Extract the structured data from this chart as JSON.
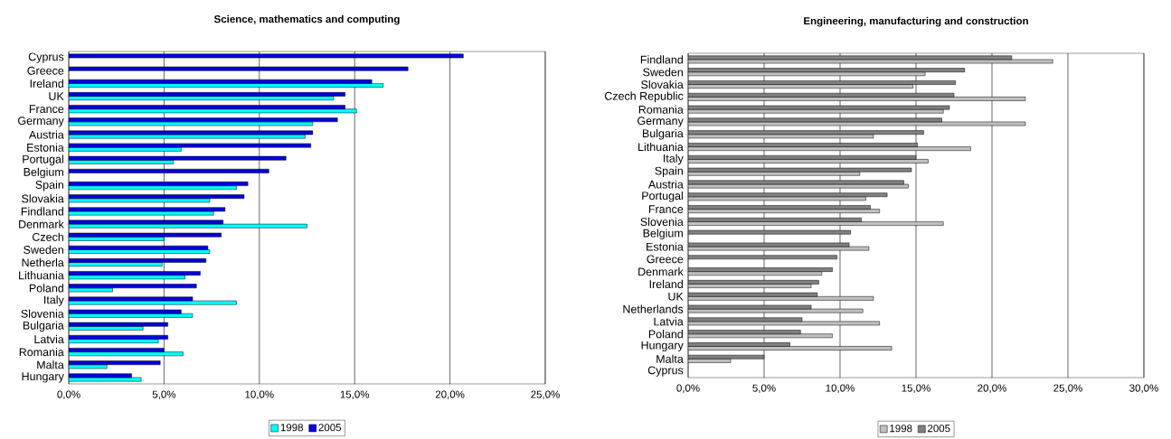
{
  "chart_data": [
    {
      "type": "bar",
      "orientation": "horizontal",
      "title": "Science, mathematics and computing",
      "categories": [
        "Cyprus",
        "Greece",
        "Ireland",
        "UK",
        "France",
        "Germany",
        "Austria",
        "Estonia",
        "Portugal",
        "Belgium",
        "Spain",
        "Slovakia",
        "Findland",
        "Denmark",
        "Czech",
        "Sweden",
        "Netherla",
        "Lithuania",
        "Poland",
        "Italy",
        "Slovenia",
        "Bulgaria",
        "Latvia",
        "Romania",
        "Malta",
        "Hungary"
      ],
      "series": [
        {
          "name": "1998",
          "color": "#00ffff",
          "values": [
            null,
            null,
            16.5,
            13.9,
            15.1,
            12.8,
            12.4,
            5.9,
            5.5,
            null,
            8.8,
            7.4,
            7.6,
            12.5,
            5.0,
            7.4,
            4.9,
            6.1,
            2.3,
            8.8,
            6.5,
            3.9,
            4.7,
            6.0,
            2.0,
            3.8
          ]
        },
        {
          "name": "2005",
          "color": "#0000dd",
          "values": [
            20.7,
            17.8,
            15.9,
            14.5,
            14.5,
            14.1,
            12.8,
            12.7,
            11.4,
            10.5,
            9.4,
            9.2,
            8.2,
            8.1,
            8.0,
            7.3,
            7.2,
            6.9,
            6.7,
            6.5,
            5.9,
            5.2,
            5.2,
            5.0,
            4.8,
            3.3
          ]
        }
      ],
      "xlim": [
        0,
        25
      ],
      "xticks": [
        {
          "value": 0,
          "label": "0,0%"
        },
        {
          "value": 5,
          "label": "5,0%"
        },
        {
          "value": 10,
          "label": "10,0%"
        },
        {
          "value": 15,
          "label": "15,0%"
        },
        {
          "value": 20,
          "label": "20,0%"
        },
        {
          "value": 25,
          "label": "25,0%"
        }
      ],
      "grid": "x",
      "legend": "bottom"
    },
    {
      "type": "bar",
      "orientation": "horizontal",
      "title": "Engineering, manufacturing and construction",
      "categories": [
        "Findland",
        "Sweden",
        "Slovakia",
        "Czech Republic",
        "Romania",
        "Germany",
        "Bulgaria",
        "Lithuania",
        "Italy",
        "Spain",
        "Austria",
        "Portugal",
        "France",
        "Slovenia",
        "Belgium",
        "Estonia",
        "Greece",
        "Denmark",
        "Ireland",
        "UK",
        "Netherlands",
        "Latvia",
        "Poland",
        "Hungary",
        "Malta",
        "Cyprus"
      ],
      "series": [
        {
          "name": "1998",
          "color": "#c0c0c0",
          "values": [
            24.0,
            15.6,
            14.8,
            22.2,
            16.8,
            22.2,
            12.2,
            18.6,
            15.8,
            11.3,
            14.5,
            11.7,
            12.6,
            16.8,
            null,
            11.9,
            null,
            8.8,
            8.1,
            12.2,
            11.5,
            12.6,
            9.5,
            13.4,
            2.8,
            null
          ]
        },
        {
          "name": "2005",
          "color": "#808080",
          "values": [
            21.3,
            18.2,
            17.6,
            17.5,
            17.2,
            16.7,
            15.5,
            15.1,
            15.0,
            14.7,
            14.2,
            13.1,
            12.0,
            11.4,
            10.7,
            10.6,
            9.8,
            9.5,
            8.6,
            8.5,
            8.1,
            7.5,
            7.4,
            6.7,
            5.0,
            null
          ]
        }
      ],
      "xlim": [
        0,
        30
      ],
      "xticks": [
        {
          "value": 0,
          "label": "0,0%"
        },
        {
          "value": 5,
          "label": "5,0%"
        },
        {
          "value": 10,
          "label": "10,0%"
        },
        {
          "value": 15,
          "label": "15,0%"
        },
        {
          "value": 20,
          "label": "20,0%"
        },
        {
          "value": 25,
          "label": "25,0%"
        },
        {
          "value": 30,
          "label": "30,0%"
        }
      ],
      "grid": "x",
      "legend": "bottom"
    }
  ]
}
